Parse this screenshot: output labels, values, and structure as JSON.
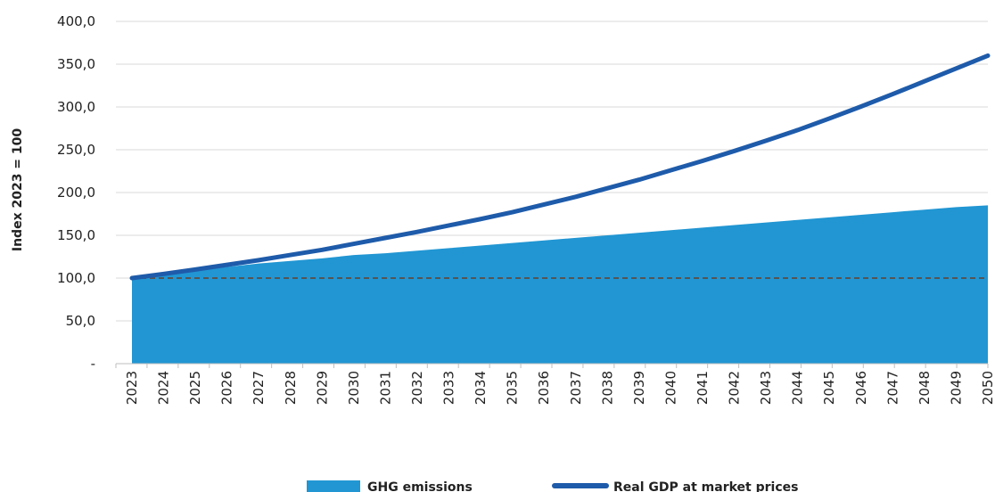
{
  "chart_data": {
    "type": "area",
    "title": "",
    "ylabel": "Index 2023 = 100",
    "xlabel": "",
    "categories": [
      "2023",
      "2024",
      "2025",
      "2026",
      "2027",
      "2028",
      "2029",
      "2030",
      "2031",
      "2032",
      "2033",
      "2034",
      "2035",
      "2036",
      "2037",
      "2038",
      "2039",
      "2040",
      "2041",
      "2042",
      "2043",
      "2044",
      "2045",
      "2046",
      "2047",
      "2048",
      "2049",
      "2050"
    ],
    "y_tick_labels": [
      "-",
      "50,0",
      "100,0",
      "150,0",
      "200,0",
      "250,0",
      "300,0",
      "350,0",
      "400,0"
    ],
    "ylim": [
      0,
      400
    ],
    "grid": true,
    "legend_position": "bottom",
    "baseline": {
      "value": 100,
      "style": "dashed",
      "color": "#555555"
    },
    "series": [
      {
        "name": "GHG emissions",
        "type": "area",
        "color": "#2196D3",
        "values": [
          100,
          105,
          109,
          113,
          117,
          120,
          123,
          127,
          129,
          132,
          135,
          138,
          141,
          144,
          147,
          150,
          153,
          156,
          159,
          162,
          165,
          168,
          171,
          174,
          177,
          180,
          183,
          185
        ]
      },
      {
        "name": "Real GDP at market prices",
        "type": "line",
        "color": "#1E5BAA",
        "values": [
          100,
          104.9,
          110,
          115.5,
          121,
          127,
          133,
          140,
          147,
          154,
          161.5,
          169,
          177,
          186,
          195,
          205,
          215,
          226,
          237,
          248.5,
          260.5,
          273,
          286.5,
          300.5,
          315,
          330,
          345,
          360
        ]
      }
    ]
  }
}
